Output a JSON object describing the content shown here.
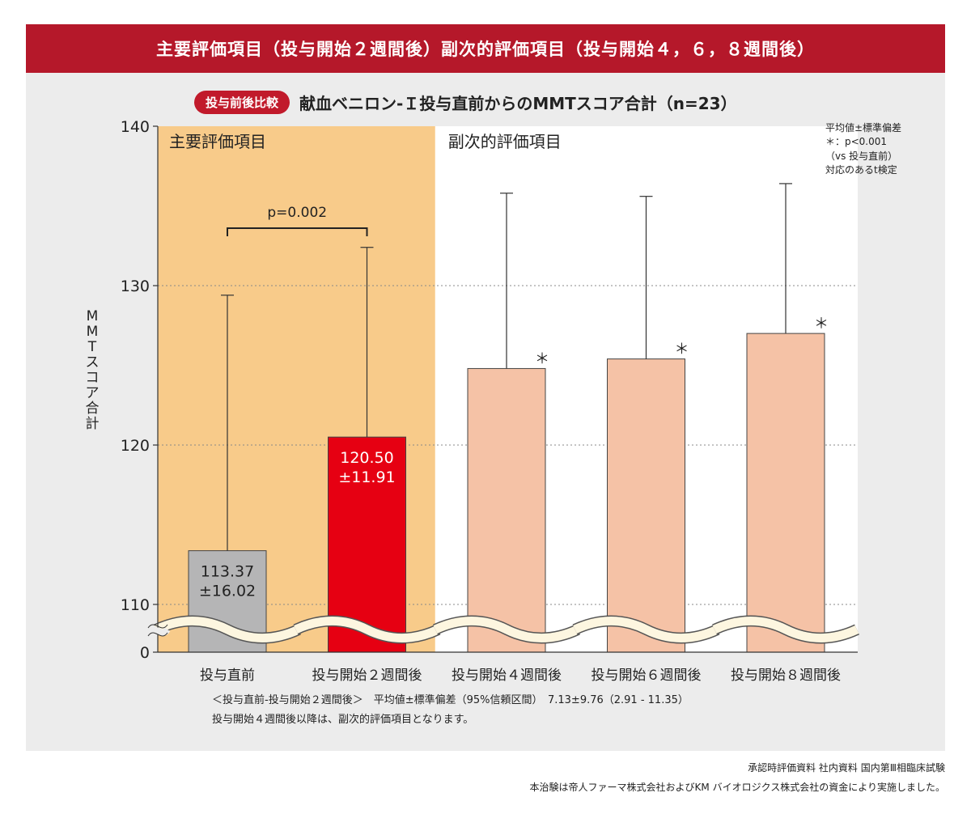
{
  "header": {
    "title": "主要評価項目（投与開始２週間後）副次的評価項目（投与開始４，６，８週間後）"
  },
  "subtitle": {
    "pill": "投与前後比較",
    "text": "献血ベニロン-Ｉ投与直前からのMMTスコア合計（n=23）"
  },
  "legend_note": {
    "line1": "平均値±標準偏差",
    "line2": "＊：p<0.001",
    "line3": "（vs 投与直前）",
    "line4": "対応のあるt検定"
  },
  "chart_data": {
    "type": "bar",
    "ylabel": "MMTスコア合計",
    "y_ticks": [
      "0",
      "110",
      "120",
      "130",
      "140"
    ],
    "y_tick_values": [
      107,
      110,
      120,
      130,
      140
    ],
    "ylim": [
      107,
      140
    ],
    "axis_break": true,
    "grid": "dotted at 110, 120, 130",
    "regions": [
      {
        "label": "主要評価項目",
        "from_category": 0,
        "to_category": 1,
        "color": "#f8cb8a"
      },
      {
        "label": "副次的評価項目",
        "from_category": 2,
        "to_category": 4,
        "color": "#ffffff"
      }
    ],
    "categories": [
      "投与直前",
      "投与開始２週間後",
      "投与開始４週間後",
      "投与開始６週間後",
      "投与開始８週間後"
    ],
    "values": [
      113.37,
      120.5,
      124.8,
      125.4,
      127.0
    ],
    "error_upper": [
      129.4,
      132.4,
      135.8,
      135.6,
      136.4
    ],
    "bar_colors": [
      "#b5b5b6",
      "#e60012",
      "#f5c2a6",
      "#f5c2a6",
      "#f5c2a6"
    ],
    "data_labels": [
      {
        "value": "113.37",
        "sd": "±16.02"
      },
      {
        "value": "120.50",
        "sd": "±11.91"
      },
      null,
      null,
      null
    ],
    "significance_markers": [
      "",
      "",
      "＊",
      "＊",
      "＊"
    ],
    "comparison": {
      "from": 0,
      "to": 1,
      "label": "p=0.002"
    }
  },
  "footnotes": {
    "line1": "＜投与直前-投与開始２週間後＞　平均値±標準偏差（95%信頼区間）　7.13±9.76（2.91 - 11.35）",
    "line2": "投与開始４週間後以降は、副次的評価項目となります。"
  },
  "source": {
    "line1": "承認時評価資料 社内資料 国内第Ⅲ相臨床試験",
    "line2": "本治験は帝人ファーマ株式会社およびKM バイオロジクス株式会社の資金により実施しました。"
  }
}
